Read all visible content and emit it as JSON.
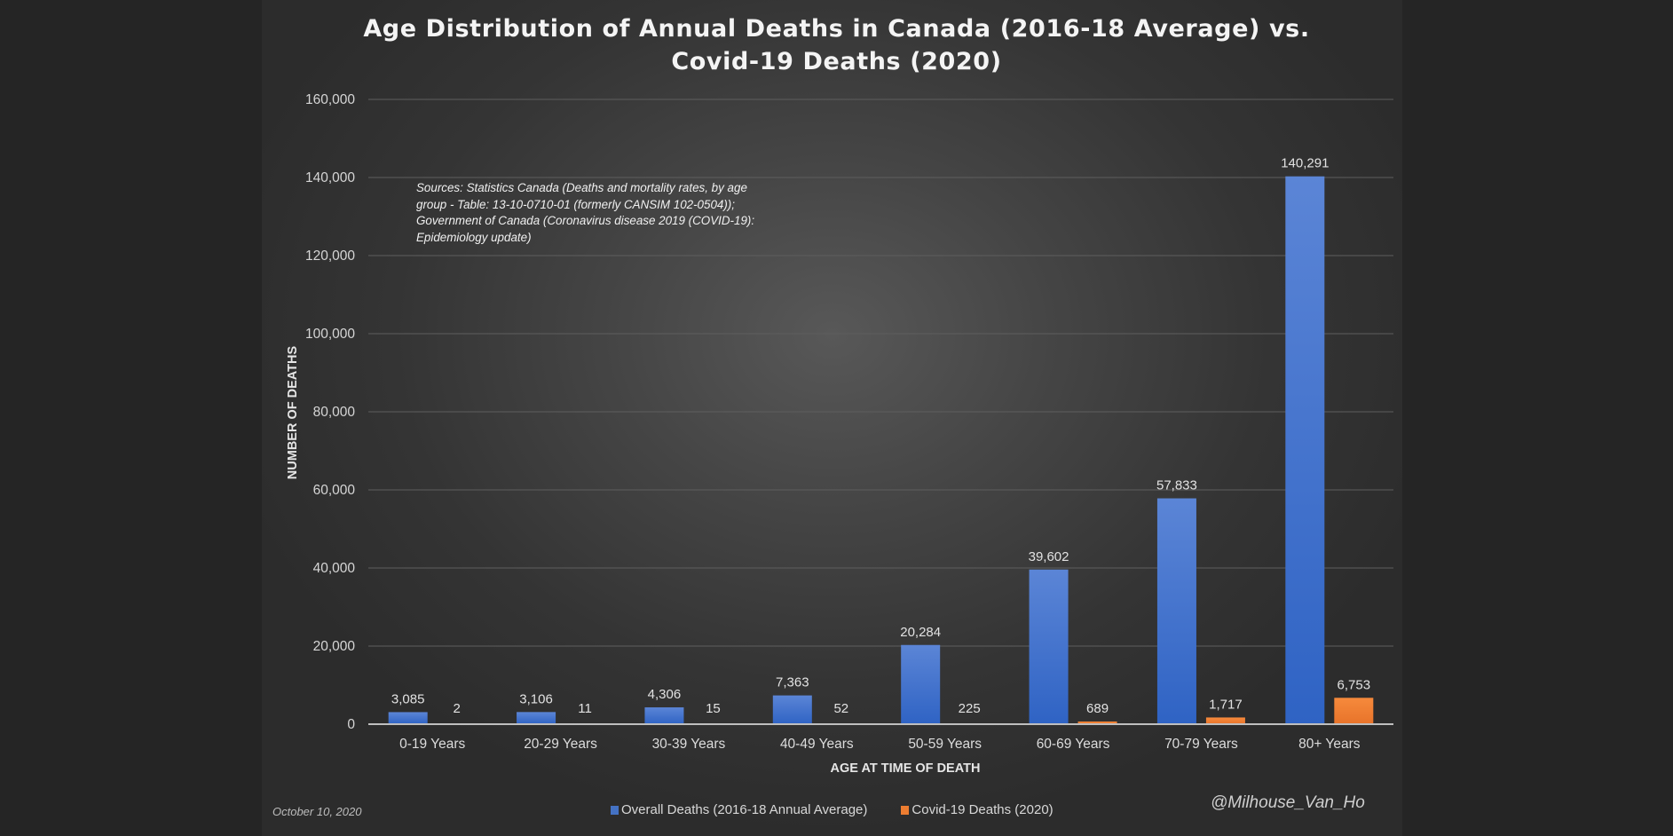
{
  "chart_data": {
    "type": "bar",
    "title": "Age Distribution of Annual Deaths in Canada (2016-18 Average) vs. Covid-19 Deaths (2020)",
    "title_lines": [
      "Age Distribution of Annual Deaths in Canada (2016-18 Average) vs.",
      "Covid-19 Deaths (2020)"
    ],
    "xlabel": "AGE AT TIME OF DEATH",
    "ylabel": "NUMBER OF DEATHS",
    "ylim": [
      0,
      160000
    ],
    "yticks": [
      0,
      20000,
      40000,
      60000,
      80000,
      100000,
      120000,
      140000,
      160000
    ],
    "ytick_labels": [
      "0",
      "20,000",
      "40,000",
      "60,000",
      "80,000",
      "100,000",
      "120,000",
      "140,000",
      "160,000"
    ],
    "grid": true,
    "legend_position": "bottom-center",
    "categories": [
      "0-19 Years",
      "20-29 Years",
      "30-39 Years",
      "40-49 Years",
      "50-59 Years",
      "60-69 Years",
      "70-79 Years",
      "80+ Years"
    ],
    "series": [
      {
        "name": "Overall Deaths (2016-18 Annual Average)",
        "color": "#4472c4",
        "values": [
          3085,
          3106,
          4306,
          7363,
          20284,
          39602,
          57833,
          140291
        ],
        "labels": [
          "3,085",
          "3,106",
          "4,306",
          "7,363",
          "20,284",
          "39,602",
          "57,833",
          "140,291"
        ]
      },
      {
        "name": "Covid-19 Deaths (2020)",
        "color": "#ed7d31",
        "values": [
          2,
          11,
          15,
          52,
          225,
          689,
          1717,
          6753
        ],
        "labels": [
          "2",
          "11",
          "15",
          "52",
          "225",
          "689",
          "1,717",
          "6,753"
        ]
      }
    ],
    "annotation": "Sources: Statistics Canada (Deaths and mortality rates, by age group - Table: 13-10-0710-01 (formerly CANSIM 102-0504)); Government of Canada (Coronavirus disease 2019 (COVID-19): Epidemiology update)",
    "annotation_lines": [
      "Sources: Statistics Canada (Deaths and mortality rates, by age",
      "group - Table: 13-10-0710-01 (formerly CANSIM 102-0504));",
      "Government of Canada (Coronavirus disease 2019 (COVID-19):",
      "Epidemiology update)"
    ]
  },
  "footer": {
    "date": "October 10, 2020",
    "handle": "@Milhouse_Van_Ho"
  }
}
